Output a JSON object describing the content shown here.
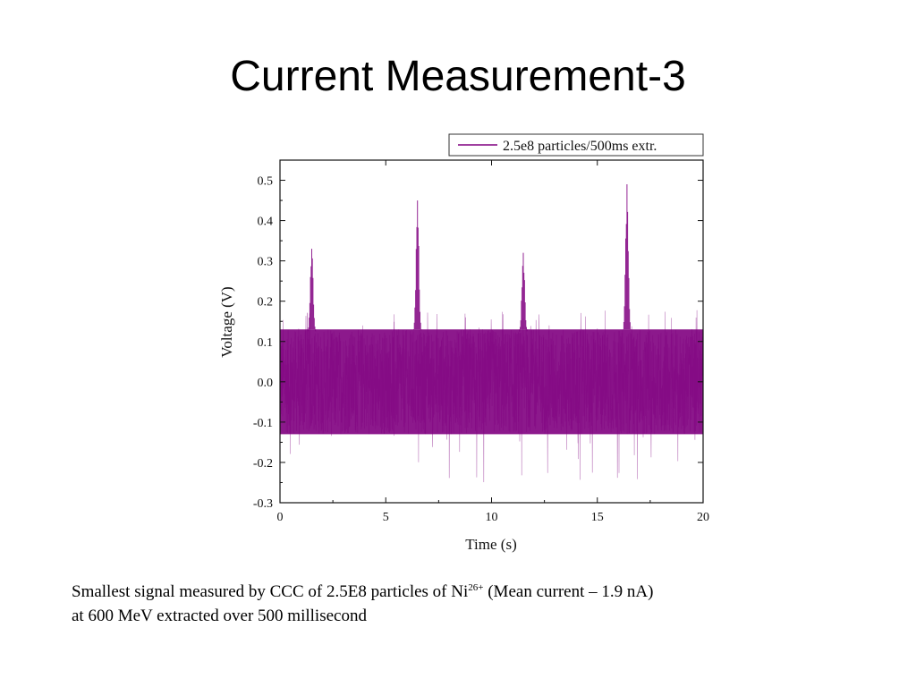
{
  "slide": {
    "title": "Current Measurement-3"
  },
  "caption": {
    "line1_part1": "Smallest signal measured by  CCC of 2.5E8 particles of Ni",
    "line1_superscript": "26+",
    "line1_part2": "  (Mean current – 1.9 nA)",
    "line2": "at 600 MeV extracted over 500 millisecond"
  },
  "chart_data": {
    "type": "line",
    "xlabel": "Time (s)",
    "ylabel": "Voltage (V)",
    "xlim": [
      0,
      20
    ],
    "ylim": [
      -0.3,
      0.55
    ],
    "x_ticks": [
      0,
      5,
      10,
      15,
      20
    ],
    "x_tick_labels": [
      "0",
      "5",
      "10",
      "15",
      "20"
    ],
    "y_ticks": [
      -0.3,
      -0.2,
      -0.1,
      0.0,
      0.1,
      0.2,
      0.3,
      0.4,
      0.5
    ],
    "y_tick_labels": [
      "-0.3",
      "-0.2",
      "-0.1",
      "0.0",
      "0.1",
      "0.2",
      "0.3",
      "0.4",
      "0.5"
    ],
    "grid": false,
    "legend_position": "top-right",
    "series": [
      {
        "name": "2.5e8 particles/500ms extr.",
        "color": "#800080",
        "baseline_band": [
          -0.13,
          0.13
        ],
        "noise_extremes": [
          -0.25,
          0.18
        ],
        "peaks": [
          {
            "x": 1.5,
            "y": 0.33
          },
          {
            "x": 6.5,
            "y": 0.45
          },
          {
            "x": 11.5,
            "y": 0.32
          },
          {
            "x": 16.4,
            "y": 0.49
          }
        ]
      }
    ]
  }
}
